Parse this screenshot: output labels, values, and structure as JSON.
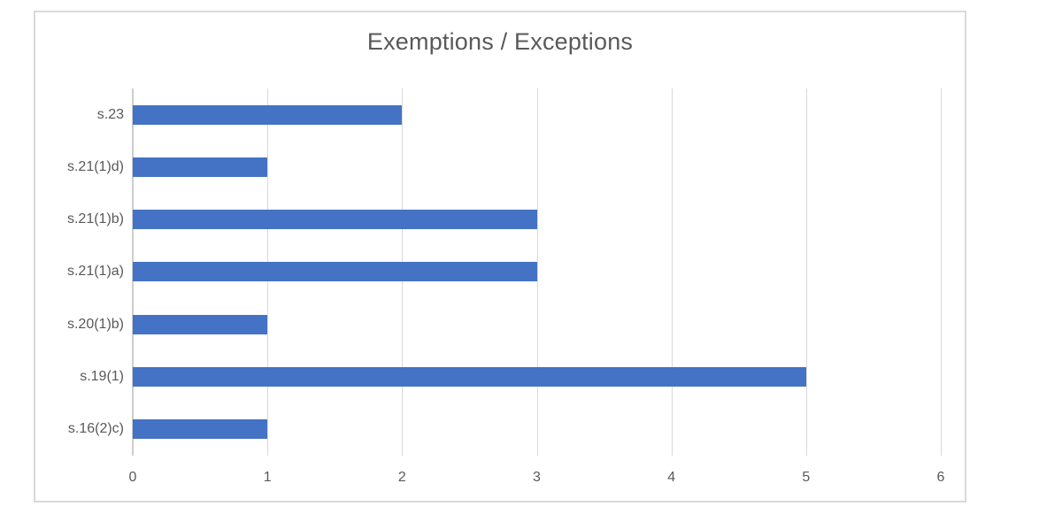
{
  "chart_data": {
    "type": "bar",
    "orientation": "horizontal",
    "title": "Exemptions / Exceptions",
    "categories": [
      "s.23",
      "s.21(1)d)",
      "s.21(1)b)",
      "s.21(1)a)",
      "s.20(1)b)",
      "s.19(1)",
      "s.16(2)c)"
    ],
    "values": [
      2,
      1,
      3,
      3,
      1,
      5,
      1
    ],
    "xlabel": "",
    "ylabel": "",
    "xlim": [
      0,
      6
    ],
    "x_ticks": [
      "0",
      "1",
      "2",
      "3",
      "4",
      "5",
      "6"
    ],
    "grid": true,
    "legend": "none",
    "colors": {
      "bar": "#4472C4",
      "text": "#595959",
      "gridline": "#D9D9D9",
      "frame_border": "#D9D9D9",
      "background": "#FFFFFF"
    }
  }
}
